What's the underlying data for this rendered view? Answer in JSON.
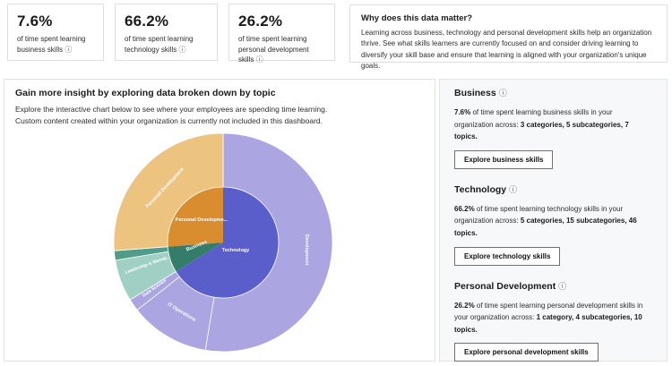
{
  "cards": [
    {
      "value": "7.6%",
      "caption": "of time spent learning business skills",
      "info_icon": "ⓘ"
    },
    {
      "value": "66.2%",
      "caption": "of time spent learning technology skills",
      "info_icon": "ⓘ"
    },
    {
      "value": "26.2%",
      "caption": "of time spent learning personal development skills",
      "info_icon": "ⓘ"
    }
  ],
  "why_panel": {
    "title": "Why does this data matter?",
    "body": "Learning across business, technology and personal development skills help an organization thrive. See what skills learners are currently focused on and consider driving learning to diversify your skill base and ensure that learning is aligned with your organization's unique goals."
  },
  "main": {
    "title": "Gain more insight by exploring data broken down by topic",
    "description": "Explore the interactive chart below to see where your employees are spending time learning. Custom content created within your organization is currently not included in this dashboard."
  },
  "sidebar": {
    "sections": [
      {
        "title": "Business",
        "info_icon": "ⓘ",
        "stat": "7.6%",
        "text": " of time spent learning business skills in your organization across: ",
        "breakdown": "3 categories, 5 subcategories, 7 topics.",
        "button": "Explore business skills"
      },
      {
        "title": "Technology",
        "info_icon": "ⓘ",
        "stat": "66.2%",
        "text": " of time spent learning technology skills in your organization across: ",
        "breakdown": "5 categories, 15 subcategories, 46 topics.",
        "button": "Explore technology skills"
      },
      {
        "title": "Personal Development",
        "info_icon": "ⓘ",
        "stat": "26.2%",
        "text": " of time spent learning personal development skills in your organization across: ",
        "breakdown": "1 category, 4 subcategories, 10 topics.",
        "button": "Explore personal development skills"
      }
    ]
  },
  "chart_data": {
    "type": "sunburst",
    "title": "Time spent learning by topic",
    "unit": "percent of learning time",
    "start_angle_deg": 0,
    "direction": "clockwise",
    "rings": [
      {
        "name": "domains",
        "inner_radius": 0,
        "outer_radius": 62,
        "segments": [
          {
            "label": "Technology",
            "value": 66.2,
            "color": "#5a5ecb"
          },
          {
            "label": "Business",
            "value": 7.6,
            "color": "#347d6b"
          },
          {
            "label": "Personal Development",
            "value": 26.2,
            "color": "#d98d2f"
          }
        ]
      },
      {
        "name": "categories",
        "inner_radius": 62,
        "outer_radius": 122,
        "segments": [
          {
            "label": "Development",
            "parent": "Technology",
            "value": 52.6,
            "color": "#aba5e2"
          },
          {
            "label": "IT Operations",
            "parent": "Technology",
            "value": 11.8,
            "color": "#aba5e2"
          },
          {
            "label": "Data Science",
            "parent": "Technology",
            "value": 1.8,
            "color": "#aba5e2"
          },
          {
            "label": "Leadership & Manag...",
            "parent": "Business",
            "value": 6.2,
            "color": "#a0d0c4"
          },
          {
            "label": "",
            "parent": "Business",
            "value": 1.4,
            "color": "#4f9d89"
          },
          {
            "label": "Personal Development",
            "parent": "Personal Development",
            "value": 26.2,
            "color": "#ecc37f"
          }
        ]
      }
    ],
    "labels": [
      {
        "text": "Personal Developme...",
        "x": -24,
        "y": -24,
        "rot": 0,
        "size": 5.5
      },
      {
        "text": "Technology",
        "x": 14,
        "y": 10,
        "rot": 0,
        "size": 5.5
      },
      {
        "text": "Business",
        "x": -29,
        "y": 5,
        "rot": -22,
        "size": 5.5
      },
      {
        "text": "Development",
        "x": 92,
        "y": 8,
        "rot": 90,
        "size": 5.5
      },
      {
        "text": "IT Operations",
        "x": -47,
        "y": 79,
        "rot": 31,
        "size": 5.5
      },
      {
        "text": "Data Science",
        "x": -76,
        "y": 52,
        "rot": -35,
        "size": 5
      },
      {
        "text": "Leadership & Manag...",
        "x": -84,
        "y": 26,
        "rot": -20,
        "size": 5
      },
      {
        "text": "Personal Development",
        "x": -64,
        "y": -60,
        "rot": -47,
        "size": 5.5
      }
    ]
  }
}
